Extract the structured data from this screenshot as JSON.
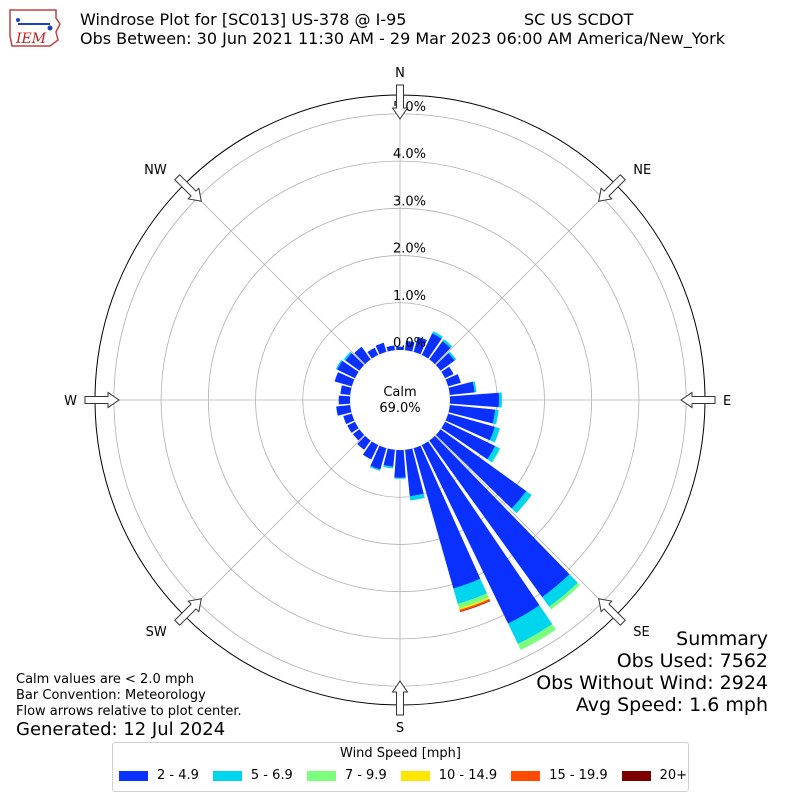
{
  "logo_text": "IEM",
  "header": {
    "line1_left": "Windrose Plot for [SC013] US-378 @ I-95",
    "line1_right": "SC US SCDOT",
    "line2": "Obs Between: 30 Jun 2021 11:30 AM - 29 Mar 2023 06:00 AM America/New_York"
  },
  "notes": [
    "Calm values are < 2.0 mph",
    "Bar Convention: Meteorology",
    "Flow arrows relative to plot center."
  ],
  "generated": "Generated: 12 Jul 2024",
  "summary": {
    "title": "Summary",
    "obs_used": "Obs Used: 7562",
    "obs_without_wind": "Obs Without Wind: 2924",
    "avg_speed": "Avg Speed: 1.6 mph"
  },
  "chart_data": {
    "type": "windrose",
    "calm_label": "Calm",
    "calm_value": "69.0%",
    "radial_ticks": [
      "0.0%",
      "1.0%",
      "2.0%",
      "3.0%",
      "4.0%",
      "5.0%"
    ],
    "radial_tick_values": [
      0,
      1,
      2,
      3,
      4,
      5
    ],
    "rmax": 5.4,
    "compass_labels": [
      {
        "label": "N",
        "deg": 0
      },
      {
        "label": "NE",
        "deg": 45
      },
      {
        "label": "E",
        "deg": 90
      },
      {
        "label": "SE",
        "deg": 135
      },
      {
        "label": "S",
        "deg": 180
      },
      {
        "label": "SW",
        "deg": 225
      },
      {
        "label": "W",
        "deg": 270
      },
      {
        "label": "NW",
        "deg": 315
      }
    ],
    "legend_title": "Wind Speed [mph]",
    "speed_bins": [
      {
        "name": "2 - 4.9",
        "color": "#0a30ff"
      },
      {
        "name": "5 - 6.9",
        "color": "#00d5ee"
      },
      {
        "name": "7 - 9.9",
        "color": "#7cff7c"
      },
      {
        "name": "10 - 14.9",
        "color": "#ffe600"
      },
      {
        "name": "15 - 19.9",
        "color": "#ff4a00"
      },
      {
        "name": "20+",
        "color": "#7f0000"
      }
    ],
    "directions_deg": [
      0,
      10,
      20,
      30,
      40,
      50,
      60,
      70,
      80,
      90,
      100,
      110,
      120,
      130,
      140,
      150,
      160,
      170,
      180,
      190,
      200,
      210,
      220,
      230,
      240,
      250,
      260,
      270,
      280,
      290,
      300,
      310,
      320,
      330,
      340,
      350
    ],
    "cumulative_percent": [
      [
        0.07,
        0.07,
        0.07,
        0.07,
        0.07,
        0.07
      ],
      [
        0.2,
        0.2,
        0.2,
        0.2,
        0.2,
        0.2
      ],
      [
        0.33,
        0.33,
        0.33,
        0.33,
        0.33,
        0.33
      ],
      [
        0.51,
        0.56,
        0.56,
        0.56,
        0.56,
        0.56
      ],
      [
        0.48,
        0.53,
        0.53,
        0.53,
        0.53,
        0.53
      ],
      [
        0.37,
        0.41,
        0.41,
        0.41,
        0.41,
        0.41
      ],
      [
        0.2,
        0.2,
        0.2,
        0.2,
        0.2,
        0.2
      ],
      [
        0.28,
        0.28,
        0.28,
        0.28,
        0.28,
        0.28
      ],
      [
        0.53,
        0.57,
        0.57,
        0.57,
        0.57,
        0.57
      ],
      [
        1.04,
        1.1,
        1.1,
        1.1,
        1.1,
        1.1
      ],
      [
        0.97,
        1.04,
        1.04,
        1.04,
        1.04,
        1.04
      ],
      [
        1.03,
        1.14,
        1.14,
        1.14,
        1.14,
        1.14
      ],
      [
        1.18,
        1.29,
        1.31,
        1.31,
        1.31,
        1.31
      ],
      [
        2.24,
        2.38,
        2.38,
        2.38,
        2.38,
        2.38
      ],
      [
        4.09,
        4.34,
        4.41,
        4.41,
        4.41,
        4.41
      ],
      [
        4.2,
        4.68,
        4.82,
        4.82,
        4.82,
        4.82
      ],
      [
        3.09,
        3.43,
        3.53,
        3.56,
        3.6,
        3.61
      ],
      [
        0.99,
        1.08,
        1.08,
        1.08,
        1.08,
        1.08
      ],
      [
        0.59,
        0.61,
        0.61,
        0.61,
        0.61,
        0.61
      ],
      [
        0.36,
        0.4,
        0.4,
        0.4,
        0.4,
        0.4
      ],
      [
        0.47,
        0.5,
        0.5,
        0.5,
        0.5,
        0.5
      ],
      [
        0.34,
        0.34,
        0.34,
        0.34,
        0.34,
        0.34
      ],
      [
        0.24,
        0.24,
        0.24,
        0.24,
        0.24,
        0.24
      ],
      [
        0.17,
        0.17,
        0.17,
        0.17,
        0.17,
        0.17
      ],
      [
        0.18,
        0.18,
        0.18,
        0.18,
        0.18,
        0.18
      ],
      [
        0.19,
        0.19,
        0.19,
        0.19,
        0.19,
        0.19
      ],
      [
        0.3,
        0.3,
        0.3,
        0.3,
        0.3,
        0.3
      ],
      [
        0.24,
        0.24,
        0.24,
        0.24,
        0.24,
        0.24
      ],
      [
        0.21,
        0.21,
        0.21,
        0.21,
        0.21,
        0.21
      ],
      [
        0.38,
        0.38,
        0.38,
        0.38,
        0.38,
        0.38
      ],
      [
        0.42,
        0.45,
        0.45,
        0.45,
        0.45,
        0.45
      ],
      [
        0.37,
        0.41,
        0.41,
        0.41,
        0.41,
        0.41
      ],
      [
        0.33,
        0.33,
        0.33,
        0.33,
        0.33,
        0.33
      ],
      [
        0.17,
        0.17,
        0.17,
        0.17,
        0.17,
        0.17
      ],
      [
        0.2,
        0.2,
        0.2,
        0.2,
        0.2,
        0.2
      ],
      [
        0.1,
        0.1,
        0.1,
        0.1,
        0.1,
        0.1
      ]
    ]
  }
}
